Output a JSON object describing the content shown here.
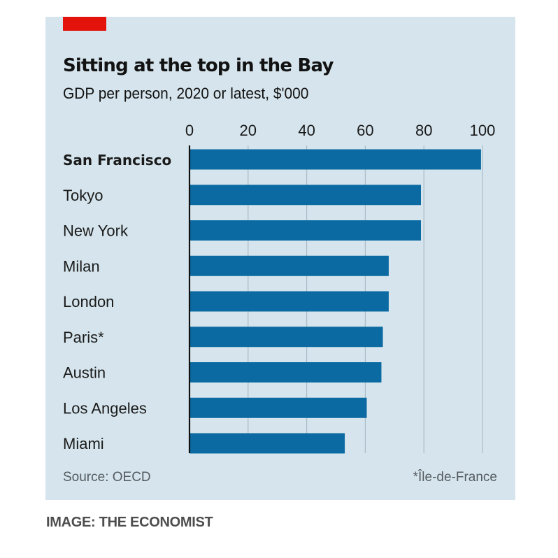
{
  "chart_data": {
    "type": "bar",
    "orientation": "horizontal",
    "title": "Sitting at the top in the Bay",
    "subtitle": "GDP per person, 2020 or latest, $'000",
    "xlabel": "",
    "ylabel": "",
    "xlim": [
      0,
      100
    ],
    "xticks": [
      0,
      20,
      40,
      60,
      80,
      100
    ],
    "xtick_labels": [
      "0",
      "20",
      "40",
      "60",
      "80",
      "100"
    ],
    "grid": true,
    "tick_position": "top",
    "categories": [
      "San Francisco",
      "Tokyo",
      "New York",
      "Milan",
      "London",
      "Paris*",
      "Austin",
      "Los Angeles",
      "Miami"
    ],
    "highlighted_category": "San Francisco",
    "values": [
      99.5,
      79,
      79,
      68,
      68,
      66,
      65.5,
      60.5,
      53
    ],
    "source": "Source: OECD",
    "footnote": "*Île-de-France",
    "colors": {
      "bar": "#0a6aa1",
      "background": "#d6e5ed",
      "grid": "#a9bcc7",
      "axis": "#121212",
      "tag": "#e3120b"
    }
  },
  "caption": "IMAGE: THE ECONOMIST"
}
